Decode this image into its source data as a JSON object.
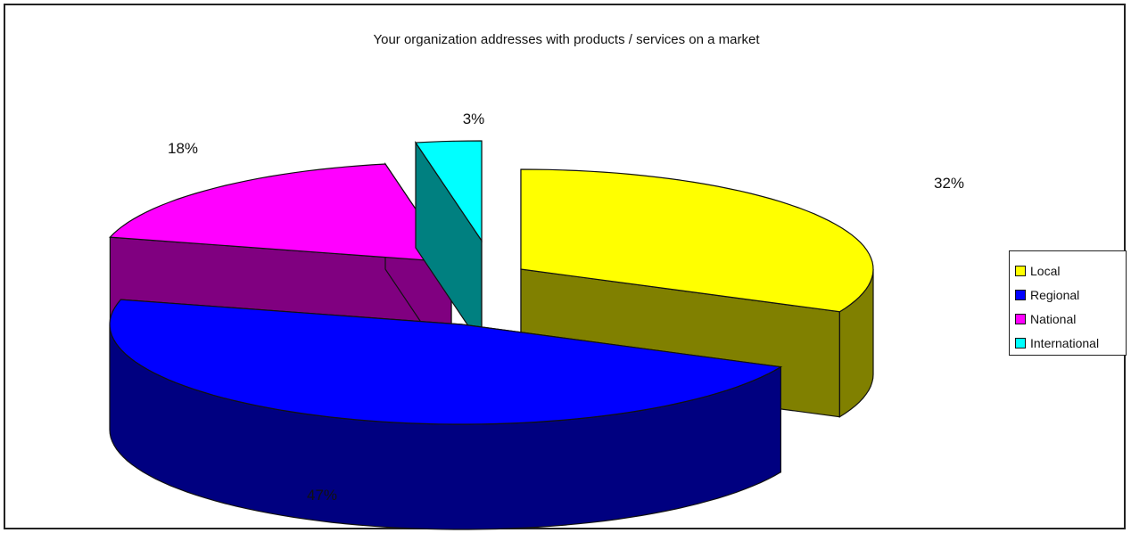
{
  "chart_data": {
    "type": "pie",
    "title": "Your organization addresses with products / services on a market",
    "slices": [
      {
        "label": "Local",
        "value": 32,
        "display": "32%",
        "color": "#ffff00",
        "side_color": "#808000"
      },
      {
        "label": "Regional",
        "value": 47,
        "display": "47%",
        "color": "#0000ff",
        "side_color": "#000080"
      },
      {
        "label": "National",
        "value": 18,
        "display": "18%",
        "color": "#ff00ff",
        "side_color": "#800080"
      },
      {
        "label": "International",
        "value": 3,
        "display": "3%",
        "color": "#00ffff",
        "side_color": "#008080"
      }
    ],
    "legend_position": "right",
    "exploded": true,
    "three_d": true
  }
}
